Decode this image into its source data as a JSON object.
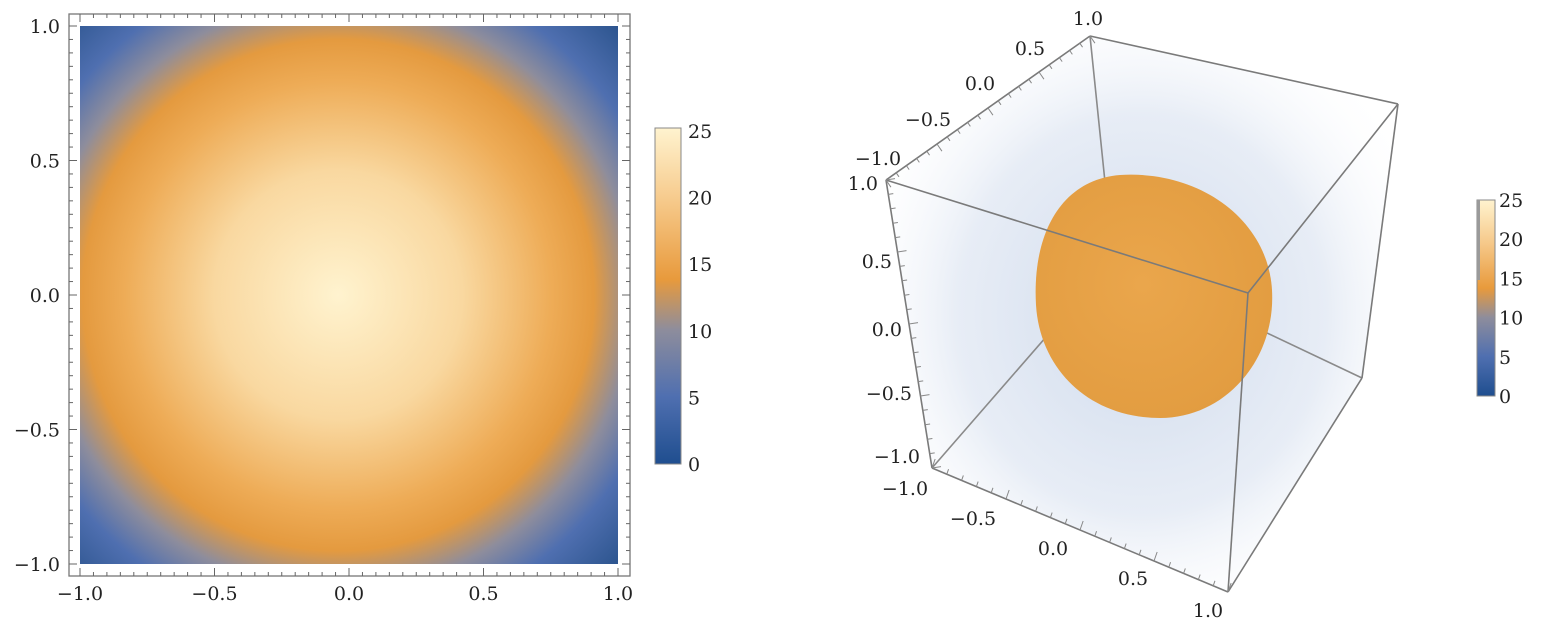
{
  "chart_data": [
    {
      "type": "heatmap",
      "title": "",
      "xlabel": "",
      "ylabel": "",
      "xlim": [
        -1.0,
        1.0
      ],
      "ylim": [
        -1.0,
        1.0
      ],
      "x_ticks": [
        "−1.0",
        "−0.5",
        "0.0",
        "0.5",
        "1.0"
      ],
      "y_ticks": [
        "−1.0",
        "−0.5",
        "0.0",
        "0.5",
        "1.0"
      ],
      "colorbar": {
        "range": [
          0,
          25
        ],
        "ticks": [
          "0",
          "5",
          "10",
          "15",
          "20",
          "25"
        ],
        "colors": [
          "#1f4e8f",
          "#4f6fb0",
          "#8e8d9c",
          "#e89a3c",
          "#f6c98a",
          "#fff3cf"
        ]
      },
      "field": "peaked at center (0,0) ≈ 25, falling to ≈ 0 at the square boundary",
      "grid": false
    },
    {
      "type": "volume",
      "title": "",
      "axis_ticks": {
        "depth_axis": [
          "−1.0",
          "−0.5",
          "0.0",
          "0.5",
          "1.0"
        ],
        "vertical_axis": [
          "−1.0",
          "−0.5",
          "0.0",
          "0.5",
          "1.0"
        ],
        "front_axis": [
          "−1.0",
          "−0.5",
          "0.0",
          "0.5",
          "1.0"
        ]
      },
      "range": [
        -1.0,
        1.0
      ],
      "colorbar": {
        "range": [
          0,
          25
        ],
        "ticks": [
          "0",
          "5",
          "10",
          "15",
          "20",
          "25"
        ],
        "colors": [
          "#1f4e8f",
          "#4f6fb0",
          "#8e8d9c",
          "#e89a3c",
          "#f6c98a",
          "#fff3cf"
        ]
      },
      "isosurface_color": "#e8a44a",
      "fog_color": "#c9d6ea"
    }
  ]
}
